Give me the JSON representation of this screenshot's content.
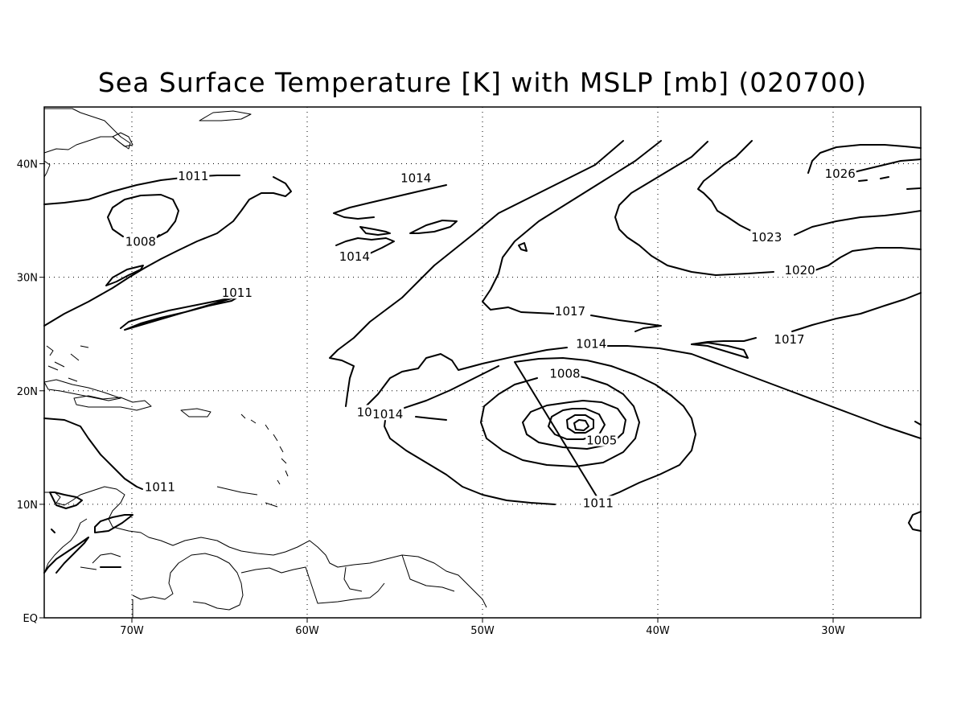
{
  "title": "Sea Surface Temperature [K] with MSLP [mb] (020700)",
  "map": {
    "lon_range": [
      -75,
      -25
    ],
    "lat_range": [
      0,
      45
    ],
    "lon_ticks": [
      {
        "value": -70,
        "label": "70W"
      },
      {
        "value": -60,
        "label": "60W"
      },
      {
        "value": -50,
        "label": "50W"
      },
      {
        "value": -40,
        "label": "40W"
      },
      {
        "value": -30,
        "label": "30W"
      }
    ],
    "lat_ticks": [
      {
        "value": 0,
        "label": "EQ"
      },
      {
        "value": 10,
        "label": "10N"
      },
      {
        "value": 20,
        "label": "20N"
      },
      {
        "value": 30,
        "label": "30N"
      },
      {
        "value": 40,
        "label": "40N"
      }
    ],
    "grid": true,
    "contour_interval_mb": 3,
    "contour_labels": [
      {
        "text": "1011",
        "lon": -66.5,
        "lat": 38.7
      },
      {
        "text": "1008",
        "lon": -69.5,
        "lat": 32.9
      },
      {
        "text": "1011",
        "lon": -64.0,
        "lat": 28.4
      },
      {
        "text": "1014",
        "lon": -53.8,
        "lat": 38.5
      },
      {
        "text": "1014",
        "lon": -57.3,
        "lat": 31.6
      },
      {
        "text": "1017",
        "lon": -45.0,
        "lat": 26.8
      },
      {
        "text": "1014",
        "lon": -43.8,
        "lat": 23.9
      },
      {
        "text": "1008",
        "lon": -45.3,
        "lat": 21.3
      },
      {
        "text": "1005",
        "lon": -43.2,
        "lat": 15.4
      },
      {
        "text": "1011",
        "lon": -56.3,
        "lat": 17.9
      },
      {
        "text": "1014",
        "lon": -55.4,
        "lat": 17.7
      },
      {
        "text": "1011",
        "lon": -68.4,
        "lat": 11.3
      },
      {
        "text": "1011",
        "lon": -43.4,
        "lat": 9.9
      },
      {
        "text": "1017",
        "lon": -32.5,
        "lat": 24.3
      },
      {
        "text": "1020",
        "lon": -31.9,
        "lat": 30.4
      },
      {
        "text": "1023",
        "lon": -33.8,
        "lat": 33.3
      },
      {
        "text": "1026",
        "lon": -29.6,
        "lat": 38.9
      }
    ]
  }
}
